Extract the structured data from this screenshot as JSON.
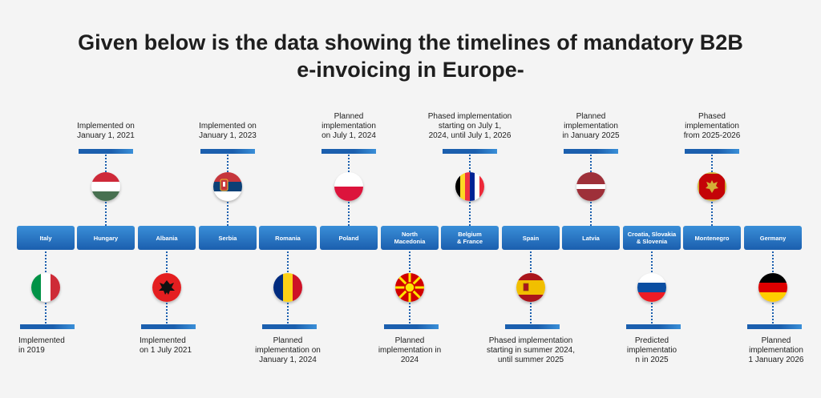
{
  "title": "Given below is the data showing the timelines of mandatory B2B\ne-invoicing in Europe-",
  "colors": {
    "box_top": "#3a8fd8",
    "box_bottom": "#1b5fae",
    "text": "#1e1e1e"
  },
  "countries": [
    {
      "name": "Italy",
      "note": "Implemented\nin 2019",
      "flag": "italy-flag-icon"
    },
    {
      "name": "Hungary",
      "note": "Implemented on\nJanuary 1, 2021",
      "flag": "hungary-flag-icon"
    },
    {
      "name": "Albania",
      "note": "Implemented\non 1 July 2021",
      "flag": "albania-flag-icon"
    },
    {
      "name": "Serbia",
      "note": "Implemented on\nJanuary 1, 2023",
      "flag": "serbia-flag-icon"
    },
    {
      "name": "Romania",
      "note": "Planned\nimplementation on\nJanuary 1, 2024",
      "flag": "romania-flag-icon"
    },
    {
      "name": "Poland",
      "note": "Planned\nimplementation\non July 1, 2024",
      "flag": "poland-flag-icon"
    },
    {
      "name": "North\nMacedonia",
      "note": "Planned\nimplementation in\n2024",
      "flag": "north-macedonia-flag-icon"
    },
    {
      "name": "Belgium\n& France",
      "note": "Phased implementation\nstarting on July 1,\n2024, until July 1, 2026",
      "flag": "belgium-france-flag-icon"
    },
    {
      "name": "Spain",
      "note": "Phased implementation\nstarting in summer 2024,\nuntil summer 2025",
      "flag": "spain-flag-icon"
    },
    {
      "name": "Latvia",
      "note": "Planned\nimplementation\nin January 2025",
      "flag": "latvia-flag-icon"
    },
    {
      "name": "Croatia, Slovakia\n& Slovenia",
      "note": "Predicted\nimplementatio\nn in 2025",
      "flag": "croatia-slovakia-slovenia-flag-icon"
    },
    {
      "name": "Montenegro",
      "note": "Phased\nimplementation\nfrom 2025-2026",
      "flag": "montenegro-flag-icon"
    },
    {
      "name": "Germany",
      "note": "Planned\nimplementation\n1 January 2026",
      "flag": "germany-flag-icon"
    }
  ]
}
